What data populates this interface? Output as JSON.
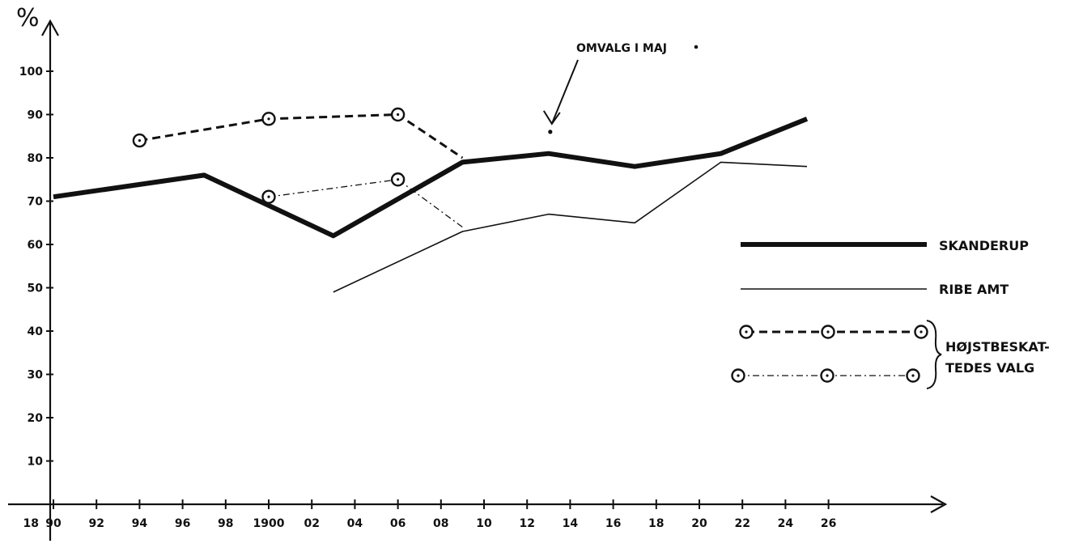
{
  "chart_data": {
    "type": "line",
    "ylabel": "%",
    "x_axis_prefix": "18",
    "x_ticks": [
      "90",
      "92",
      "94",
      "96",
      "98",
      "1900",
      "02",
      "04",
      "06",
      "08",
      "10",
      "12",
      "14",
      "16",
      "18",
      "20",
      "22",
      "24",
      "26"
    ],
    "y_ticks": [
      "10",
      "20",
      "30",
      "40",
      "50",
      "60",
      "70",
      "80",
      "90",
      "100"
    ],
    "ylim": [
      0,
      110
    ],
    "xlim": [
      1890,
      1940
    ],
    "grid": false,
    "legend_position": "right",
    "series": [
      {
        "name": "SKANDERUP",
        "style": "thick",
        "x": [
          1890,
          1897,
          1903,
          1909,
          1913,
          1917,
          1921,
          1925
        ],
        "y": [
          71,
          76,
          62,
          79,
          81,
          78,
          81,
          89
        ]
      },
      {
        "name": "RIBE AMT",
        "style": "thin",
        "x": [
          1903,
          1909,
          1913,
          1917,
          1921,
          1925
        ],
        "y": [
          49,
          63,
          67,
          65,
          79,
          78
        ]
      },
      {
        "name": "HØJSTBESKAT-",
        "style": "dashed-circles",
        "x": [
          1894,
          1900,
          1906,
          1909
        ],
        "y": [
          84,
          89,
          90,
          80
        ]
      },
      {
        "name": "TEDES VALG",
        "style": "dashdot-circles",
        "x": [
          1900,
          1906,
          1909
        ],
        "y": [
          71,
          75,
          64
        ]
      }
    ],
    "annotations": [
      {
        "text": "OMVALG I MAJ",
        "x": 1913,
        "y": 86
      }
    ]
  }
}
